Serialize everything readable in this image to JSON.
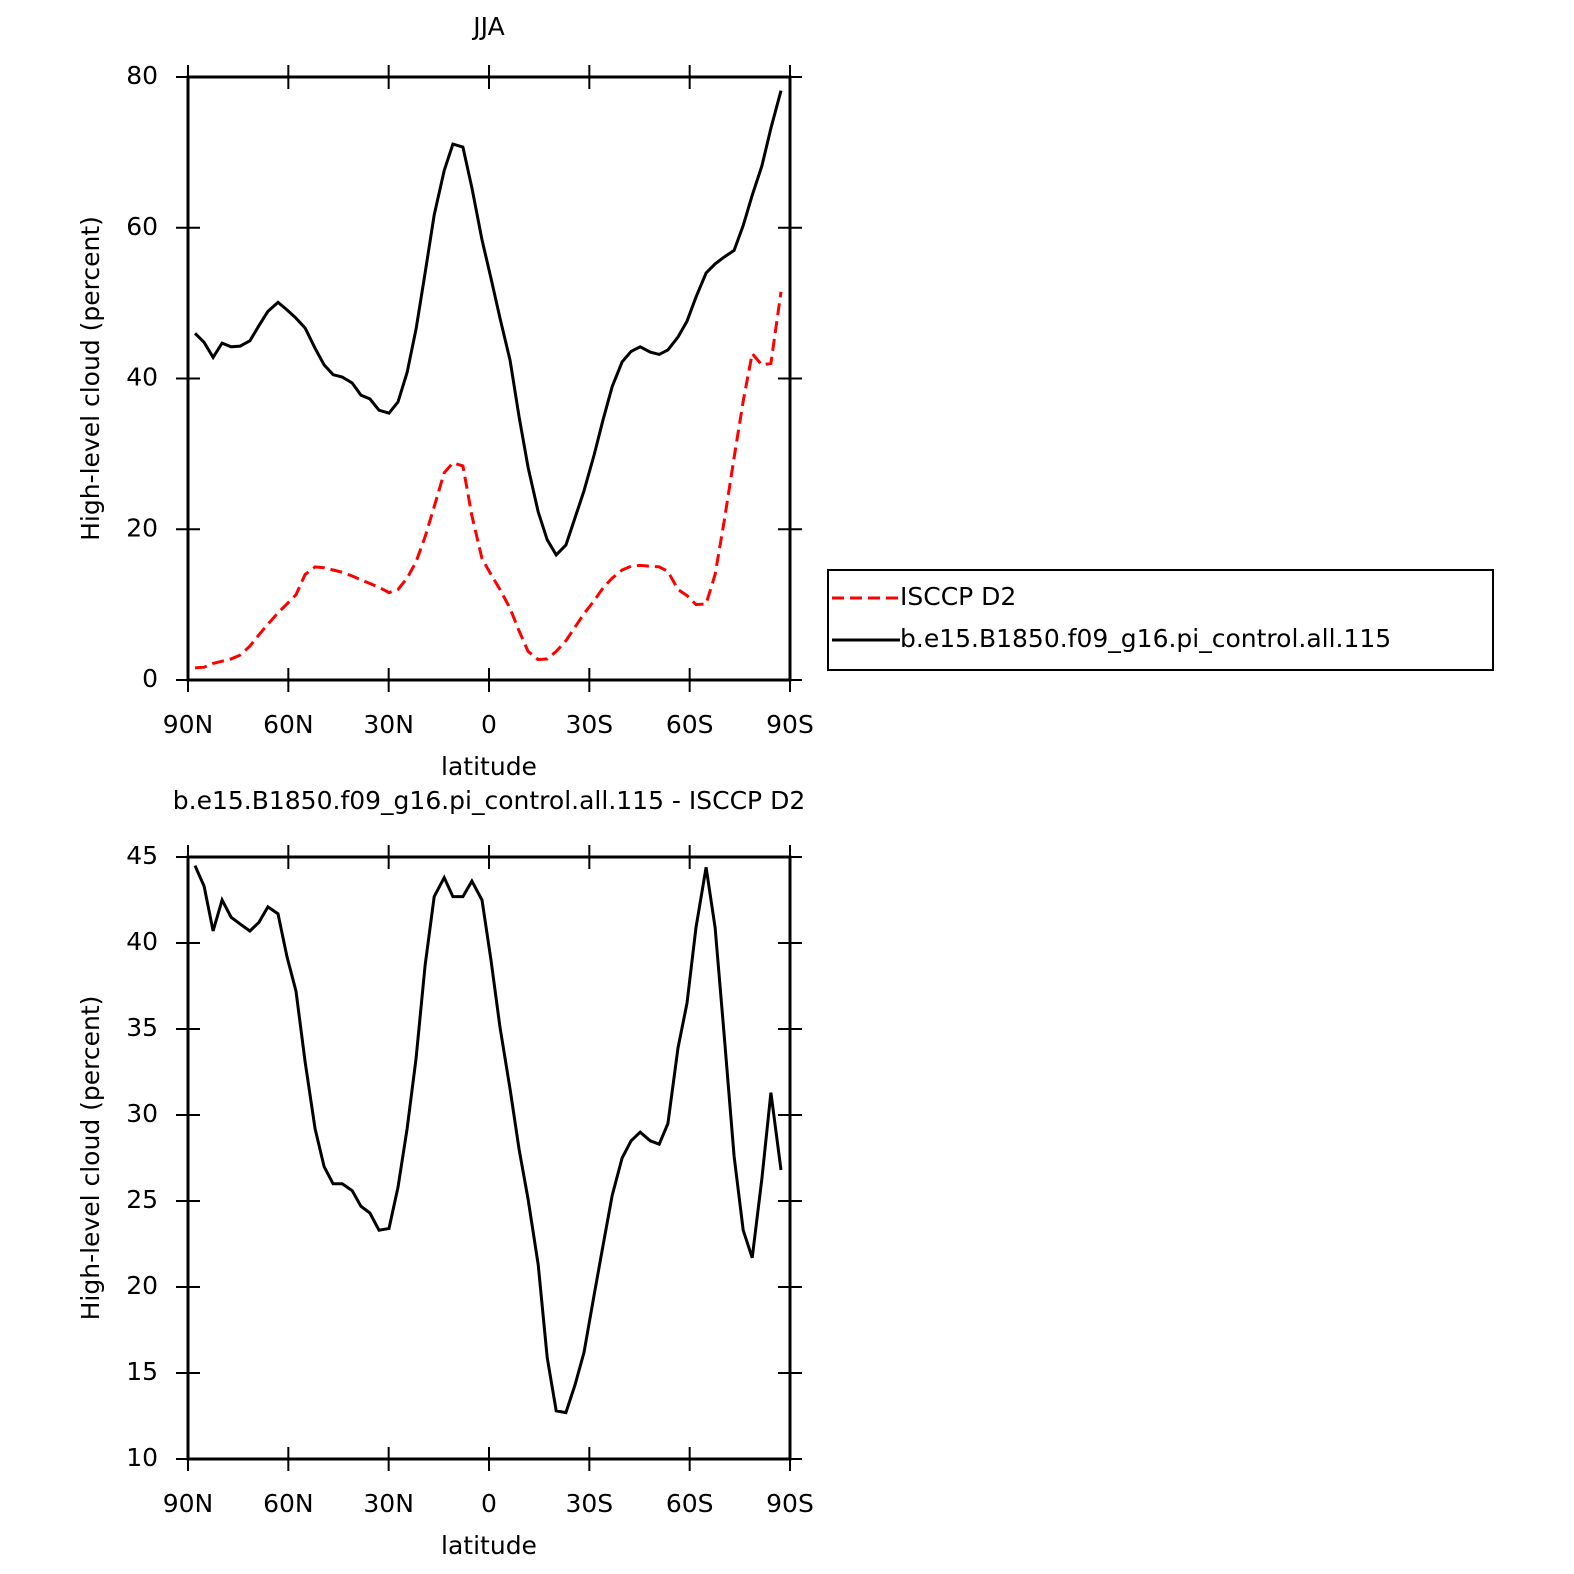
{
  "chart_data": [
    {
      "type": "line",
      "title": "JJA",
      "x_label": "latitude",
      "y_label": "High-level cloud (percent)",
      "x": [
        87.9,
        85.2,
        82.5,
        79.8,
        77.1,
        74.4,
        71.5,
        68.8,
        66.1,
        63.1,
        60.4,
        57.7,
        55.0,
        52.0,
        49.3,
        46.6,
        43.9,
        40.9,
        38.3,
        35.6,
        32.9,
        29.9,
        27.2,
        24.5,
        21.8,
        19.1,
        16.4,
        13.4,
        10.8,
        7.8,
        5.1,
        2.1,
        -0.6,
        -3.3,
        -6.3,
        -9.0,
        -11.7,
        -14.7,
        -17.4,
        -20.1,
        -23.0,
        -25.7,
        -28.4,
        -31.4,
        -34.1,
        -36.8,
        -39.8,
        -42.5,
        -45.2,
        -48.2,
        -50.9,
        -53.5,
        -56.5,
        -59.2,
        -61.9,
        -64.9,
        -67.6,
        -70.3,
        -73.3,
        -76.0,
        -78.7,
        -81.6,
        -84.3,
        -87.3
      ],
      "xlim": [
        90,
        -90
      ],
      "xticks": [
        {
          "value": 90,
          "label": "90N"
        },
        {
          "value": 60,
          "label": "60N"
        },
        {
          "value": 30,
          "label": "30N"
        },
        0,
        {
          "value": -30,
          "label": "30S"
        },
        {
          "value": -60,
          "label": "60S"
        },
        {
          "value": -90,
          "label": "90S"
        }
      ],
      "ylim": [
        0,
        80
      ],
      "yticks": [
        0,
        20,
        40,
        60,
        80
      ],
      "legend": "right",
      "series": [
        {
          "name": "ISCCP D2",
          "color": "#ff0000",
          "line_style": "dashed",
          "values": [
            1.6,
            1.7,
            2.2,
            2.5,
            2.8,
            3.3,
            4.5,
            6.0,
            7.4,
            8.9,
            10.1,
            11.3,
            14.0,
            15.0,
            14.9,
            14.6,
            14.3,
            13.8,
            13.3,
            12.8,
            12.3,
            11.6,
            12.0,
            13.5,
            15.7,
            19.0,
            23.0,
            27.5,
            28.8,
            28.4,
            21.8,
            16.1,
            14.0,
            12.0,
            9.5,
            6.5,
            3.8,
            2.7,
            2.8,
            3.8,
            5.2,
            7.0,
            8.8,
            10.5,
            12.2,
            13.5,
            14.6,
            15.1,
            15.2,
            15.1,
            15.0,
            14.4,
            12.0,
            11.2,
            10.0,
            10.1,
            14.0,
            21.0,
            29.5,
            37.0,
            43.3,
            41.8,
            42.0,
            51.5
          ]
        },
        {
          "name": "b.e15.B1850.f09_g16.pi_control.all.115",
          "color": "#000000",
          "line_style": "solid",
          "values": [
            46.0,
            44.8,
            42.8,
            44.7,
            44.2,
            44.3,
            45.0,
            47.0,
            48.9,
            50.1,
            49.1,
            48.0,
            46.7,
            44.0,
            41.8,
            40.5,
            40.2,
            39.4,
            37.8,
            37.3,
            35.8,
            35.4,
            36.9,
            40.8,
            46.6,
            54.0,
            61.7,
            67.6,
            71.1,
            70.7,
            65.3,
            58.4,
            53.3,
            48.0,
            42.4,
            34.9,
            28.2,
            22.3,
            18.6,
            16.6,
            17.9,
            21.5,
            25.1,
            29.8,
            34.5,
            38.9,
            42.2,
            43.6,
            44.2,
            43.5,
            43.2,
            43.8,
            45.5,
            47.6,
            50.8,
            54.0,
            55.2,
            56.1,
            57.0,
            60.3,
            64.3,
            68.2,
            73.2,
            78.2
          ]
        }
      ]
    },
    {
      "type": "line",
      "title": "b.e15.B1850.f09_g16.pi_control.all.115 - ISCCP D2",
      "x_label": "latitude",
      "y_label": "High-level cloud (percent)",
      "x": [
        87.9,
        85.2,
        82.5,
        79.8,
        77.1,
        74.4,
        71.5,
        68.8,
        66.1,
        63.1,
        60.4,
        57.7,
        55.0,
        52.0,
        49.3,
        46.6,
        43.9,
        40.9,
        38.3,
        35.6,
        32.9,
        29.9,
        27.2,
        24.5,
        21.8,
        19.1,
        16.4,
        13.4,
        10.8,
        7.8,
        5.1,
        2.1,
        -0.6,
        -3.3,
        -6.3,
        -9.0,
        -11.7,
        -14.7,
        -17.4,
        -20.1,
        -23.0,
        -25.7,
        -28.4,
        -31.4,
        -34.1,
        -36.8,
        -39.8,
        -42.5,
        -45.2,
        -48.2,
        -50.9,
        -53.5,
        -56.5,
        -59.2,
        -61.9,
        -64.9,
        -67.6,
        -70.3,
        -73.3,
        -76.0,
        -78.7,
        -81.6,
        -84.3,
        -87.3
      ],
      "xlim": [
        90,
        -90
      ],
      "xticks": [
        {
          "value": 90,
          "label": "90N"
        },
        {
          "value": 60,
          "label": "60N"
        },
        {
          "value": 30,
          "label": "30N"
        },
        0,
        {
          "value": -30,
          "label": "30S"
        },
        {
          "value": -60,
          "label": "60S"
        },
        {
          "value": -90,
          "label": "90S"
        }
      ],
      "ylim": [
        10,
        45
      ],
      "yticks": [
        10,
        15,
        20,
        25,
        30,
        35,
        40,
        45
      ],
      "color": "#000000",
      "values": [
        44.5,
        43.3,
        40.7,
        42.5,
        41.5,
        41.1,
        40.7,
        41.2,
        42.1,
        41.7,
        39.2,
        37.2,
        33.1,
        29.2,
        27.0,
        26.0,
        26.0,
        25.6,
        24.7,
        24.3,
        23.3,
        23.4,
        25.8,
        29.2,
        33.3,
        38.7,
        42.7,
        43.8,
        42.7,
        42.7,
        43.6,
        42.5,
        39.0,
        35.1,
        31.5,
        28.0,
        25.1,
        21.3,
        15.9,
        12.8,
        12.7,
        14.3,
        16.2,
        19.5,
        22.4,
        25.3,
        27.5,
        28.5,
        29.0,
        28.5,
        28.3,
        29.5,
        33.9,
        36.5,
        40.9,
        44.4,
        40.9,
        34.7,
        27.6,
        23.3,
        21.7,
        26.3,
        31.3,
        26.8
      ]
    }
  ]
}
